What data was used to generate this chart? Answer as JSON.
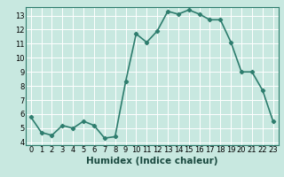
{
  "x": [
    0,
    1,
    2,
    3,
    4,
    5,
    6,
    7,
    8,
    9,
    10,
    11,
    12,
    13,
    14,
    15,
    16,
    17,
    18,
    19,
    20,
    21,
    22,
    23
  ],
  "y": [
    5.8,
    4.7,
    4.5,
    5.2,
    5.0,
    5.5,
    5.2,
    4.3,
    4.4,
    8.3,
    11.7,
    11.1,
    11.9,
    13.3,
    13.1,
    13.4,
    13.1,
    12.7,
    12.7,
    11.1,
    9.0,
    9.0,
    7.7,
    5.5
  ],
  "line_color": "#2e7d6e",
  "marker": "D",
  "marker_size": 2.2,
  "bg_color": "#c8e8e0",
  "grid_color": "#b0d8d0",
  "xlabel": "Humidex (Indice chaleur)",
  "xlim": [
    -0.5,
    23.5
  ],
  "ylim": [
    3.8,
    13.6
  ],
  "yticks": [
    4,
    5,
    6,
    7,
    8,
    9,
    10,
    11,
    12,
    13
  ],
  "xticks": [
    0,
    1,
    2,
    3,
    4,
    5,
    6,
    7,
    8,
    9,
    10,
    11,
    12,
    13,
    14,
    15,
    16,
    17,
    18,
    19,
    20,
    21,
    22,
    23
  ],
  "tick_fontsize": 6,
  "label_fontsize": 7.5,
  "line_width": 1.2,
  "spine_color": "#2e7d6e"
}
